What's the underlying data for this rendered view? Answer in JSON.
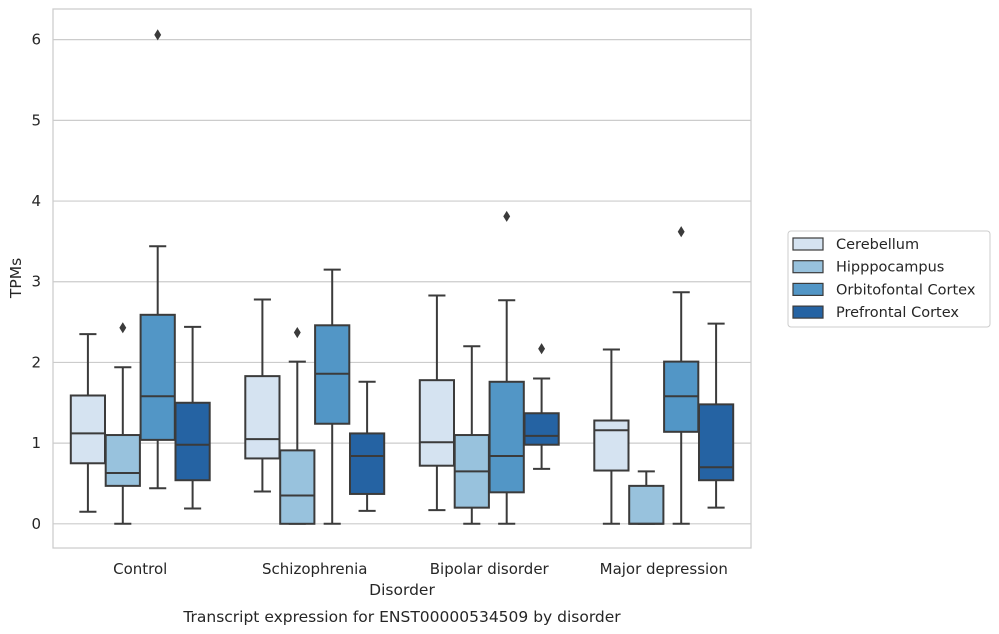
{
  "caption": "Transcript expression for ENST00000534509 by disorder",
  "chart_data": {
    "type": "boxplot",
    "xlabel": "Disorder",
    "ylabel": "TPMs",
    "ylim": [
      -0.3,
      6.38
    ],
    "yticks": [
      0,
      1,
      2,
      3,
      4,
      5,
      6
    ],
    "grid": "horizontal",
    "legend_position": "right",
    "categories": [
      "Control",
      "Schizophrenia",
      "Bipolar disorder",
      "Major depression"
    ],
    "series": [
      {
        "name": "Cerebellum",
        "color": "#d5e3f1",
        "boxes": [
          {
            "whislo": 0.15,
            "q1": 0.75,
            "med": 1.12,
            "q3": 1.59,
            "whishi": 2.35,
            "fliers": []
          },
          {
            "whislo": 0.4,
            "q1": 0.81,
            "med": 1.05,
            "q3": 1.83,
            "whishi": 2.78,
            "fliers": []
          },
          {
            "whislo": 0.17,
            "q1": 0.72,
            "med": 1.01,
            "q3": 1.78,
            "whishi": 2.83,
            "fliers": []
          },
          {
            "whislo": 0.0,
            "q1": 0.66,
            "med": 1.16,
            "q3": 1.28,
            "whishi": 2.16,
            "fliers": []
          }
        ]
      },
      {
        "name": "Hipppocampus",
        "color": "#98c2dd",
        "boxes": [
          {
            "whislo": 0.0,
            "q1": 0.47,
            "med": 0.63,
            "q3": 1.1,
            "whishi": 1.94,
            "fliers": [
              2.43
            ]
          },
          {
            "whislo": 0.0,
            "q1": 0.0,
            "med": 0.35,
            "q3": 0.91,
            "whishi": 2.01,
            "fliers": [
              2.37
            ]
          },
          {
            "whislo": 0.0,
            "q1": 0.2,
            "med": 0.65,
            "q3": 1.1,
            "whishi": 2.2,
            "fliers": []
          },
          {
            "whislo": 0.0,
            "q1": 0.0,
            "med": 0.0,
            "q3": 0.47,
            "whishi": 0.65,
            "fliers": []
          }
        ]
      },
      {
        "name": "Orbitofontal Cortex",
        "color": "#5296c6",
        "boxes": [
          {
            "whislo": 0.44,
            "q1": 1.04,
            "med": 1.58,
            "q3": 2.59,
            "whishi": 3.44,
            "fliers": [
              6.06
            ]
          },
          {
            "whislo": 0.0,
            "q1": 1.24,
            "med": 1.86,
            "q3": 2.46,
            "whishi": 3.15,
            "fliers": []
          },
          {
            "whislo": 0.0,
            "q1": 0.39,
            "med": 0.84,
            "q3": 1.76,
            "whishi": 2.77,
            "fliers": [
              3.81
            ]
          },
          {
            "whislo": 0.0,
            "q1": 1.14,
            "med": 1.58,
            "q3": 2.01,
            "whishi": 2.87,
            "fliers": [
              3.62
            ]
          }
        ]
      },
      {
        "name": "Prefrontal Cortex",
        "color": "#2563a3",
        "boxes": [
          {
            "whislo": 0.19,
            "q1": 0.54,
            "med": 0.98,
            "q3": 1.5,
            "whishi": 2.44,
            "fliers": []
          },
          {
            "whislo": 0.16,
            "q1": 0.37,
            "med": 0.84,
            "q3": 1.12,
            "whishi": 1.76,
            "fliers": []
          },
          {
            "whislo": 0.68,
            "q1": 0.98,
            "med": 1.09,
            "q3": 1.37,
            "whishi": 1.8,
            "fliers": [
              2.17
            ]
          },
          {
            "whislo": 0.2,
            "q1": 0.54,
            "med": 0.7,
            "q3": 1.48,
            "whishi": 2.48,
            "fliers": []
          }
        ]
      }
    ]
  }
}
